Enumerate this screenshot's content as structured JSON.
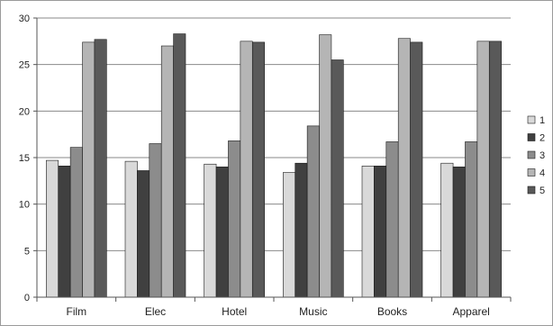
{
  "chart_data": {
    "type": "bar",
    "categories": [
      "Film",
      "Elec",
      "Hotel",
      "Music",
      "Books",
      "Apparel"
    ],
    "series": [
      {
        "name": "1",
        "values": [
          14.7,
          14.6,
          14.3,
          13.4,
          14.1,
          14.4
        ],
        "color": "#d9d9d9"
      },
      {
        "name": "2",
        "values": [
          14.1,
          13.6,
          14.0,
          14.4,
          14.1,
          14.0
        ],
        "color": "#404040"
      },
      {
        "name": "3",
        "values": [
          16.1,
          16.5,
          16.8,
          18.4,
          16.7,
          16.7
        ],
        "color": "#8c8c8c"
      },
      {
        "name": "4",
        "values": [
          27.4,
          27.0,
          27.5,
          28.2,
          27.8,
          27.5
        ],
        "color": "#b5b5b5"
      },
      {
        "name": "5",
        "values": [
          27.7,
          28.3,
          27.4,
          25.5,
          27.4,
          27.5
        ],
        "color": "#595959"
      }
    ],
    "ylim": [
      0,
      30
    ],
    "yticks": [
      0,
      5,
      10,
      15,
      20,
      25,
      30
    ],
    "title": "",
    "xlabel": "",
    "ylabel": "",
    "grid": true,
    "legend_position": "right"
  }
}
